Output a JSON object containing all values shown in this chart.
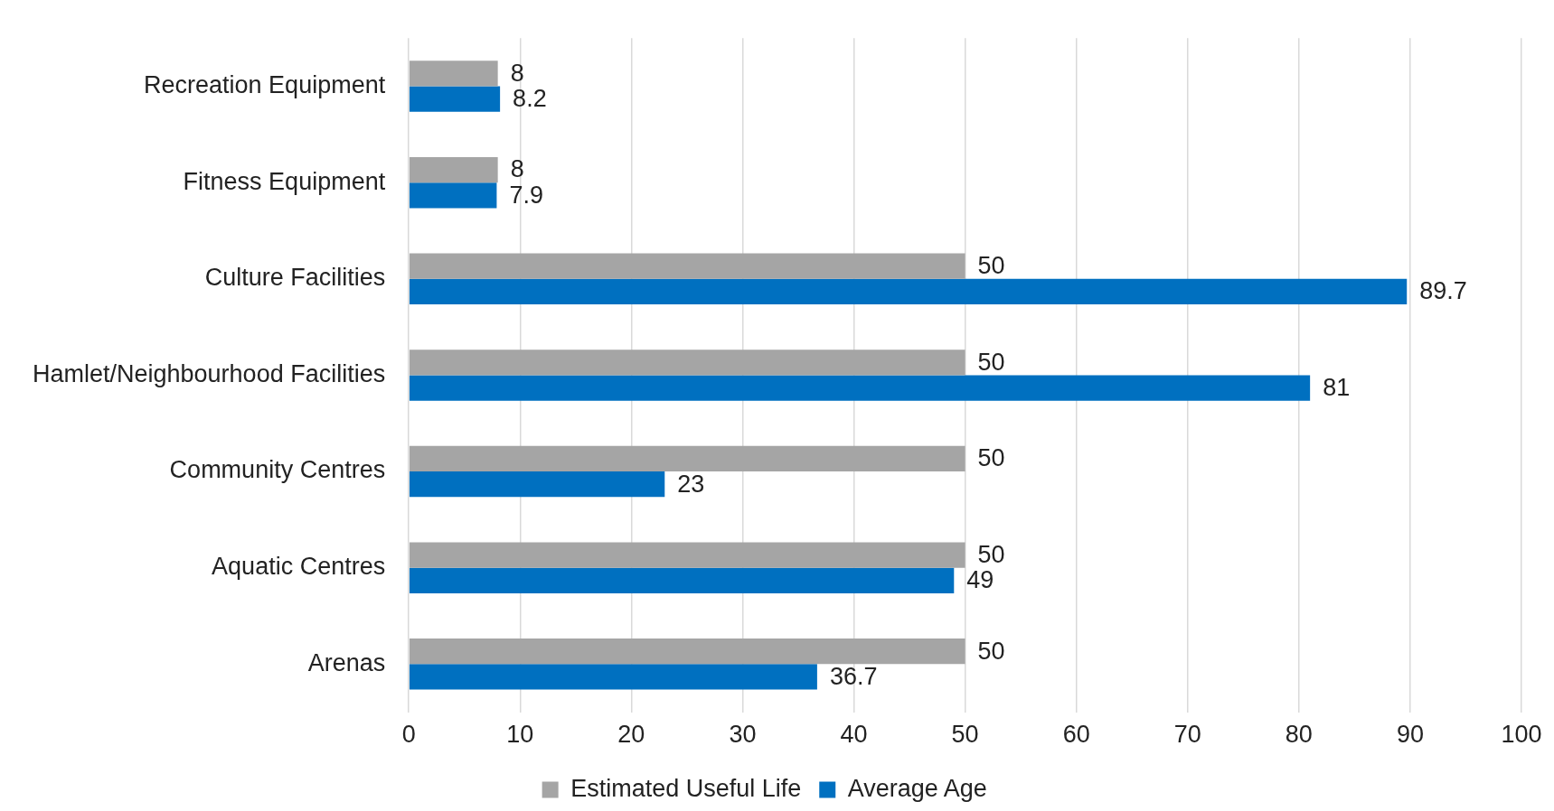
{
  "chart_data": {
    "type": "bar",
    "orientation": "horizontal",
    "categories": [
      "Recreation Equipment",
      "Fitness Equipment",
      "Culture Facilities",
      "Hamlet/Neighbourhood Facilities",
      "Community Centres",
      "Aquatic Centres",
      "Arenas"
    ],
    "series": [
      {
        "name": "Estimated Useful Life",
        "color": "#a5a5a5",
        "values": [
          8,
          8,
          50,
          50,
          50,
          50,
          50
        ]
      },
      {
        "name": "Average Age",
        "color": "#0070c0",
        "values": [
          8.2,
          7.9,
          89.7,
          81,
          23,
          49,
          36.7
        ]
      }
    ],
    "xlim": [
      0,
      100
    ],
    "xticks": [
      0,
      10,
      20,
      30,
      40,
      50,
      60,
      70,
      80,
      90,
      100
    ],
    "grid": "x",
    "legend": "bottom",
    "data_labels": true
  }
}
